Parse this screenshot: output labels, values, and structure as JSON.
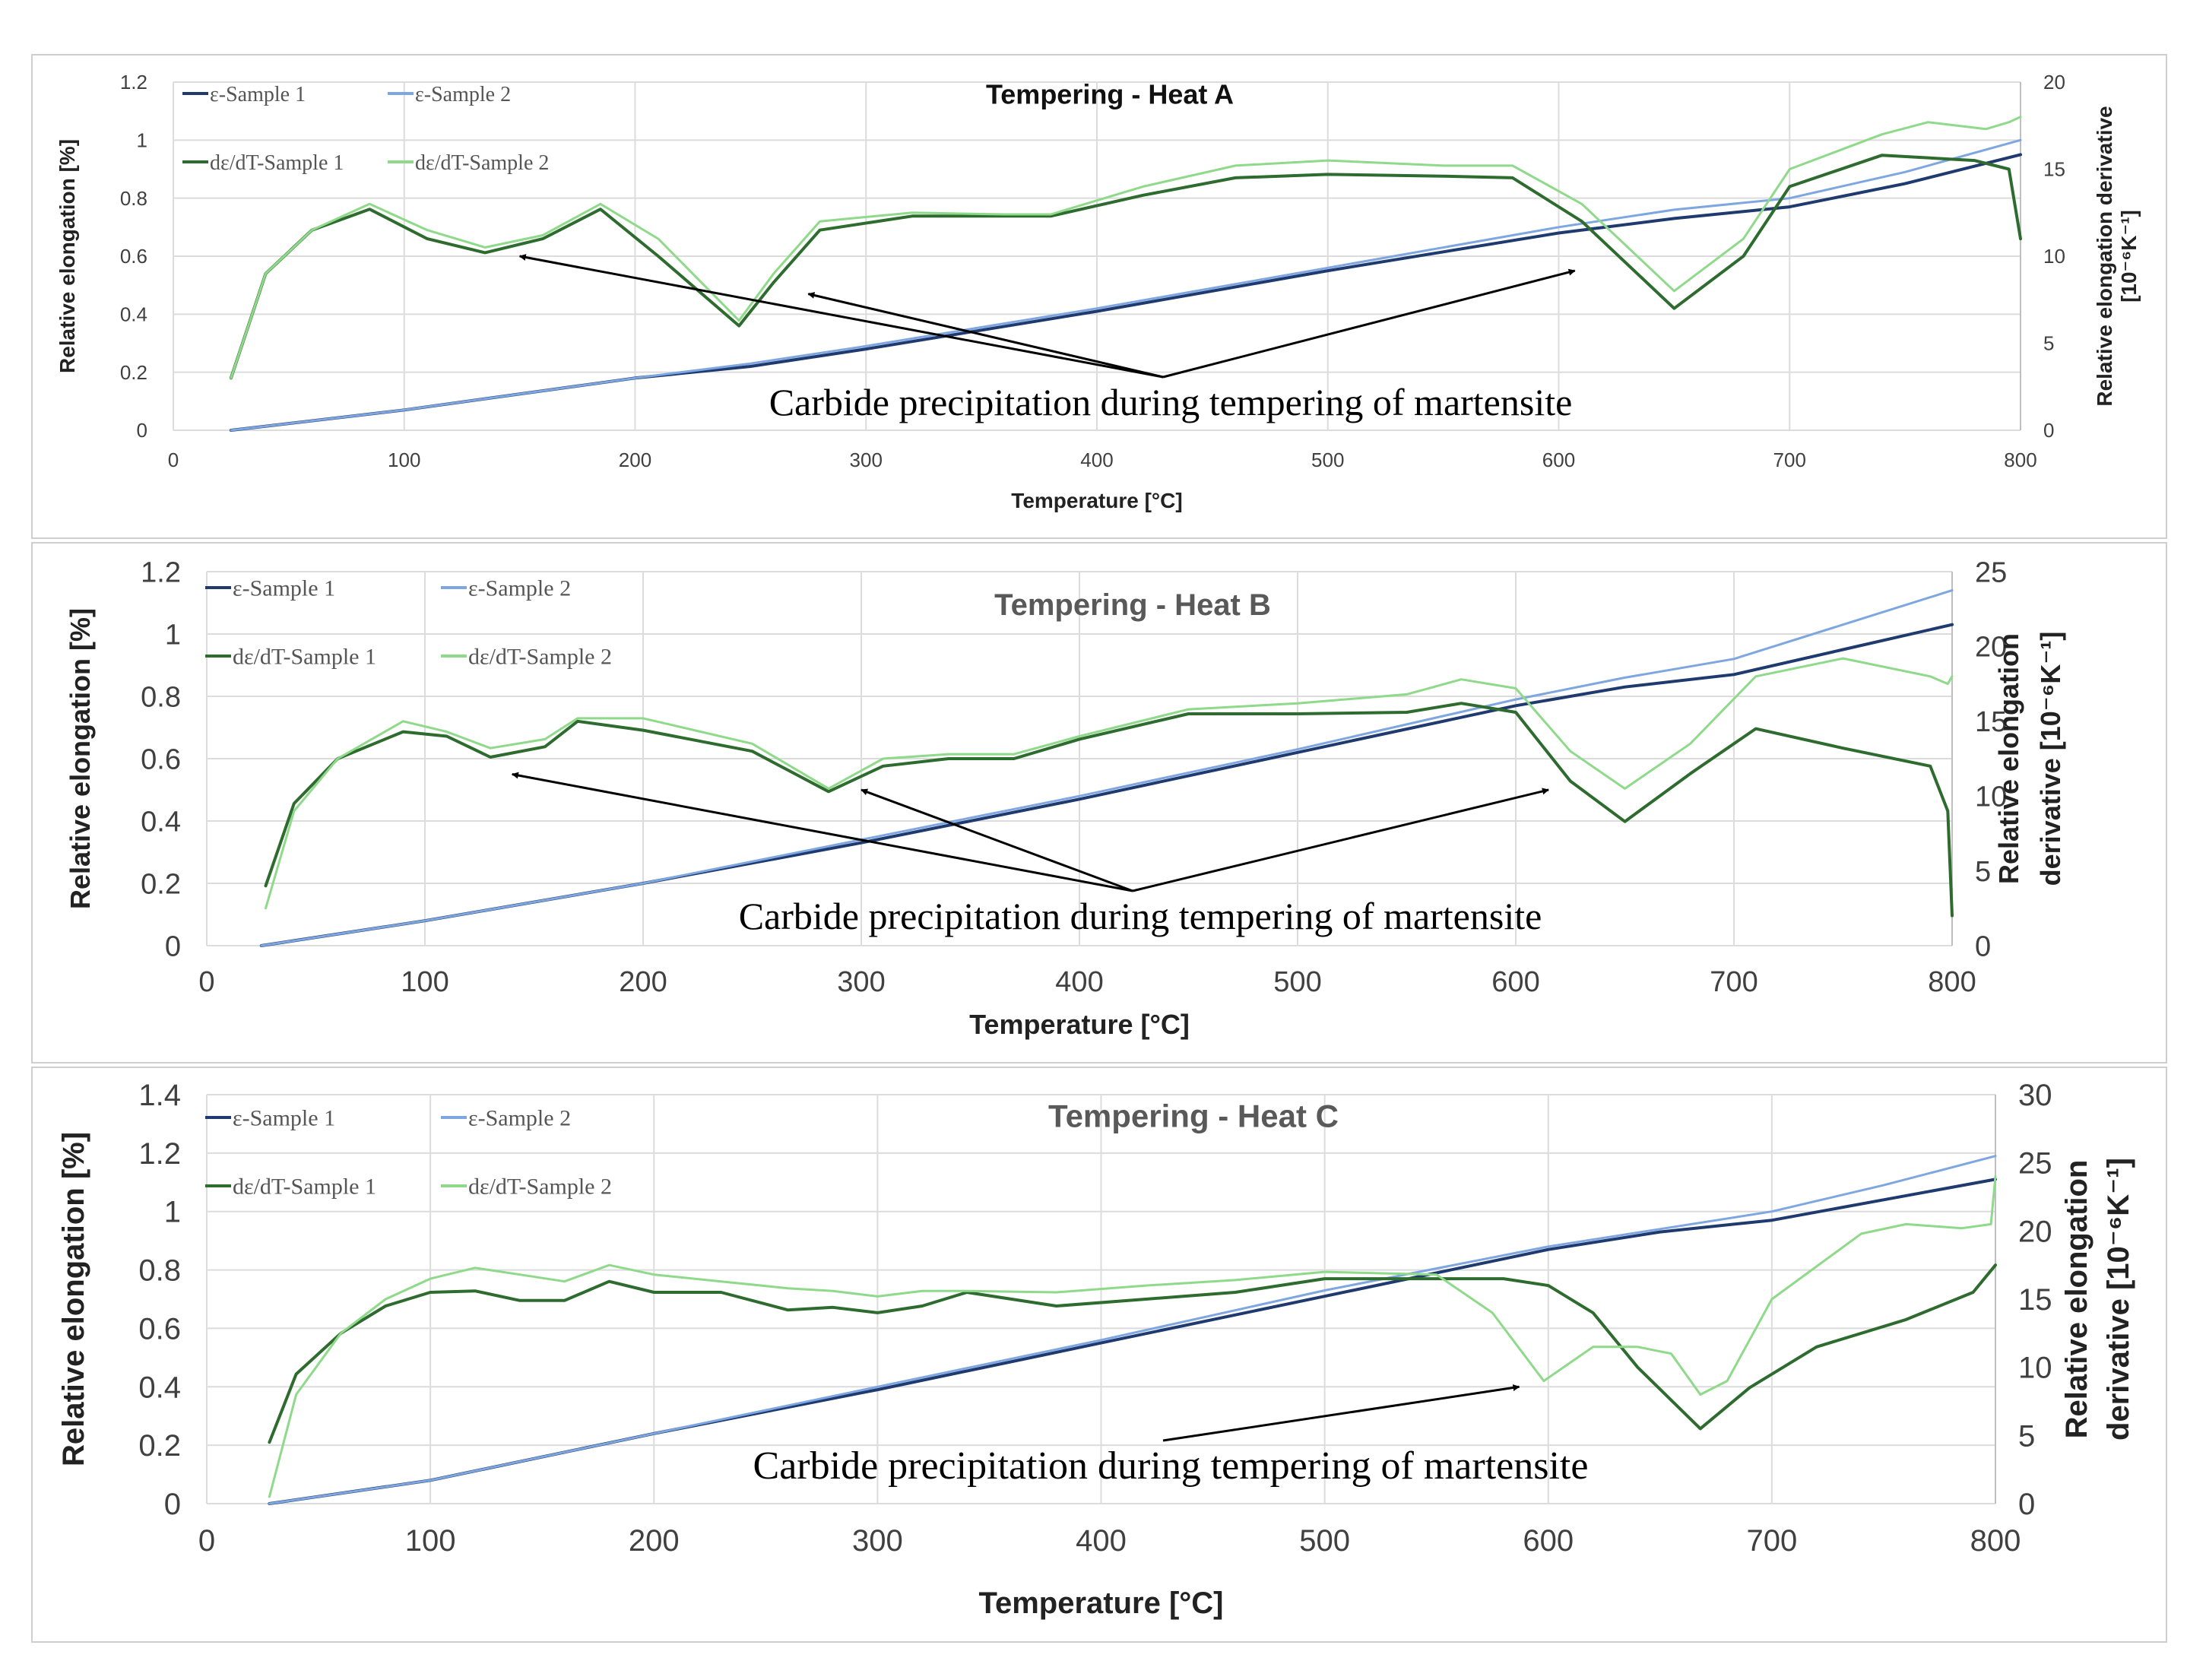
{
  "colors": {
    "eps1": "#1f3a6e",
    "eps2": "#7ea6e0",
    "der1": "#2e6b2e",
    "der2": "#8fd98a",
    "grid": "#dcdcdc",
    "frame": "#cfcfcf",
    "text": "#404040"
  },
  "chart_data": [
    {
      "type": "line",
      "title": "Tempering - Heat A",
      "xlabel": "Temperature [°C]",
      "ylabel": "Relative elongation [%]",
      "y2label_lines": [
        "Relative elongation derivative",
        "[10⁻⁶K⁻¹]"
      ],
      "xlim": [
        0,
        800
      ],
      "ylim": [
        0,
        1.2
      ],
      "y2lim": [
        0,
        20
      ],
      "xticks": [
        "0",
        "100",
        "200",
        "300",
        "400",
        "500",
        "600",
        "700",
        "800"
      ],
      "yticks": [
        "0",
        "0.2",
        "0.4",
        "0.6",
        "0.8",
        "1",
        "1.2"
      ],
      "y2ticks": [
        "0",
        "5",
        "10",
        "15",
        "20"
      ],
      "legend": [
        "ε-Sample 1",
        "ε-Sample 2",
        "dε/dT-Sample 1",
        "dε/dT-Sample 2"
      ],
      "legend_position": "top-left",
      "grid": true,
      "annotation": "Carbide precipitation during tempering of martensite",
      "arrow_targets": [
        [
          150,
          0.6
        ],
        [
          275,
          0.47
        ],
        [
          607,
          0.55
        ]
      ],
      "series": [
        {
          "name": "ε-Sample 1",
          "axis": "left",
          "x": [
            25,
            100,
            200,
            250,
            300,
            400,
            500,
            600,
            650,
            700,
            750,
            800
          ],
          "y": [
            0,
            0.07,
            0.18,
            0.22,
            0.28,
            0.41,
            0.55,
            0.68,
            0.73,
            0.77,
            0.85,
            0.95
          ]
        },
        {
          "name": "ε-Sample 2",
          "axis": "left",
          "x": [
            25,
            100,
            200,
            250,
            300,
            400,
            500,
            600,
            650,
            700,
            750,
            800
          ],
          "y": [
            0,
            0.07,
            0.18,
            0.23,
            0.29,
            0.42,
            0.56,
            0.7,
            0.76,
            0.8,
            0.89,
            1.0
          ]
        },
        {
          "name": "dε/dT-Sample 1",
          "axis": "right",
          "x": [
            25,
            40,
            60,
            85,
            110,
            135,
            160,
            185,
            210,
            245,
            260,
            280,
            320,
            360,
            380,
            420,
            460,
            500,
            550,
            580,
            610,
            650,
            680,
            700,
            740,
            780,
            795,
            800
          ],
          "y": [
            3,
            9,
            11.5,
            12.7,
            11,
            10.2,
            11,
            12.7,
            10,
            6,
            8.5,
            11.5,
            12.3,
            12.3,
            12.3,
            13.5,
            14.5,
            14.7,
            14.6,
            14.5,
            12,
            7,
            10,
            14,
            15.8,
            15.5,
            15,
            11
          ]
        },
        {
          "name": "dε/dT-Sample 2",
          "axis": "right",
          "x": [
            25,
            40,
            60,
            85,
            110,
            135,
            160,
            185,
            210,
            245,
            260,
            280,
            320,
            360,
            380,
            420,
            460,
            500,
            550,
            580,
            610,
            650,
            680,
            700,
            740,
            760,
            785,
            795,
            800
          ],
          "y": [
            3,
            9,
            11.5,
            13,
            11.5,
            10.5,
            11.2,
            13,
            11,
            6.3,
            9,
            12,
            12.5,
            12.4,
            12.4,
            14,
            15.2,
            15.5,
            15.2,
            15.2,
            13,
            8,
            11,
            15,
            17,
            17.7,
            17.3,
            17.7,
            18
          ]
        }
      ]
    },
    {
      "type": "line",
      "title": "Tempering - Heat B",
      "xlabel": "Temperature [°C]",
      "ylabel": "Relative elongation [%]",
      "y2label_lines": [
        "Relative elongation",
        "derivative [10⁻⁶K⁻¹]"
      ],
      "xlim": [
        0,
        800
      ],
      "ylim": [
        0,
        1.2
      ],
      "y2lim": [
        0,
        25
      ],
      "xticks": [
        "0",
        "100",
        "200",
        "300",
        "400",
        "500",
        "600",
        "700",
        "800"
      ],
      "yticks": [
        "0",
        "0.2",
        "0.4",
        "0.6",
        "0.8",
        "1",
        "1.2"
      ],
      "y2ticks": [
        "0",
        "5",
        "10",
        "15",
        "20",
        "25"
      ],
      "legend": [
        "ε-Sample 1",
        "ε-Sample 2",
        "dε/dT-Sample 1",
        "dε/dT-Sample 2"
      ],
      "legend_position": "top-left",
      "grid": true,
      "annotation": "Carbide precipitation during tempering of martensite",
      "arrow_targets": [
        [
          140,
          0.55
        ],
        [
          300,
          0.5
        ],
        [
          615,
          0.5
        ]
      ],
      "series": [
        {
          "name": "ε-Sample 1",
          "axis": "left",
          "x": [
            25,
            100,
            200,
            300,
            400,
            500,
            600,
            650,
            700,
            750,
            800
          ],
          "y": [
            0,
            0.08,
            0.2,
            0.33,
            0.47,
            0.62,
            0.77,
            0.83,
            0.87,
            0.95,
            1.03
          ]
        },
        {
          "name": "ε-Sample 2",
          "axis": "left",
          "x": [
            25,
            100,
            200,
            300,
            400,
            500,
            600,
            650,
            700,
            750,
            800
          ],
          "y": [
            0,
            0.08,
            0.2,
            0.34,
            0.48,
            0.63,
            0.79,
            0.86,
            0.92,
            1.03,
            1.14
          ]
        },
        {
          "name": "dε/dT-Sample 1",
          "axis": "right",
          "x": [
            27,
            40,
            60,
            90,
            110,
            130,
            155,
            170,
            200,
            250,
            285,
            310,
            340,
            370,
            400,
            450,
            500,
            550,
            575,
            600,
            625,
            650,
            680,
            710,
            750,
            790,
            798,
            800
          ],
          "y": [
            4,
            9.5,
            12.5,
            14.3,
            14,
            12.6,
            13.3,
            15,
            14.4,
            13,
            10.3,
            12,
            12.5,
            12.5,
            13.8,
            15.5,
            15.5,
            15.6,
            16.2,
            15.6,
            11,
            8.3,
            11.5,
            14.5,
            13.2,
            12,
            9,
            2
          ]
        },
        {
          "name": "dε/dT-Sample 2",
          "axis": "right",
          "x": [
            27,
            40,
            60,
            90,
            110,
            130,
            155,
            170,
            200,
            250,
            285,
            310,
            340,
            370,
            400,
            450,
            500,
            550,
            575,
            600,
            625,
            650,
            680,
            710,
            750,
            790,
            798,
            800
          ],
          "y": [
            2.5,
            9,
            12.5,
            15,
            14.3,
            13.2,
            13.8,
            15.2,
            15.2,
            13.5,
            10.5,
            12.5,
            12.8,
            12.8,
            14,
            15.8,
            16.2,
            16.8,
            17.8,
            17.2,
            13,
            10.5,
            13.5,
            18,
            19.2,
            18,
            17.5,
            18
          ]
        }
      ]
    },
    {
      "type": "line",
      "title": "Tempering - Heat C",
      "xlabel": "Temperature [°C]",
      "ylabel": "Relative elongation [%]",
      "y2label_lines": [
        "Relative elongation",
        "derivative [10⁻⁶K⁻¹]"
      ],
      "xlim": [
        0,
        800
      ],
      "ylim": [
        0,
        1.4
      ],
      "y2lim": [
        0,
        30
      ],
      "xticks": [
        "0",
        "100",
        "200",
        "300",
        "400",
        "500",
        "600",
        "700",
        "800"
      ],
      "yticks": [
        "0",
        "0.2",
        "0.4",
        "0.6",
        "0.8",
        "1",
        "1.2",
        "1.4"
      ],
      "y2ticks": [
        "0",
        "5",
        "10",
        "15",
        "20",
        "25",
        "30"
      ],
      "legend": [
        "ε-Sample 1",
        "ε-Sample 2",
        "dε/dT-Sample 1",
        "dε/dT-Sample 2"
      ],
      "legend_position": "top-left",
      "grid": true,
      "annotation": "Carbide precipitation during tempering of martensite",
      "arrow_targets": [
        [
          587,
          0.4
        ]
      ],
      "series": [
        {
          "name": "ε-Sample 1",
          "axis": "left",
          "x": [
            28,
            100,
            200,
            300,
            400,
            500,
            600,
            650,
            700,
            750,
            800
          ],
          "y": [
            0,
            0.08,
            0.24,
            0.39,
            0.55,
            0.71,
            0.87,
            0.93,
            0.97,
            1.04,
            1.11
          ]
        },
        {
          "name": "ε-Sample 2",
          "axis": "left",
          "x": [
            28,
            100,
            200,
            300,
            400,
            500,
            600,
            650,
            700,
            750,
            800
          ],
          "y": [
            0,
            0.08,
            0.24,
            0.4,
            0.56,
            0.73,
            0.88,
            0.94,
            1.0,
            1.09,
            1.19
          ]
        },
        {
          "name": "dε/dT-Sample 1",
          "axis": "right",
          "x": [
            28,
            40,
            60,
            80,
            100,
            120,
            140,
            160,
            180,
            200,
            230,
            260,
            280,
            300,
            320,
            340,
            380,
            420,
            460,
            500,
            550,
            580,
            600,
            620,
            640,
            668,
            690,
            720,
            760,
            790,
            800
          ],
          "y": [
            4.5,
            9.5,
            12.5,
            14.5,
            15.5,
            15.6,
            14.9,
            14.9,
            16.3,
            15.5,
            15.5,
            14.2,
            14.4,
            14,
            14.5,
            15.5,
            14.5,
            15,
            15.5,
            16.5,
            16.5,
            16.5,
            16,
            14,
            10,
            5.5,
            8.5,
            11.5,
            13.5,
            15.5,
            17.5
          ]
        },
        {
          "name": "dε/dT-Sample 2",
          "axis": "right",
          "x": [
            28,
            40,
            60,
            80,
            100,
            120,
            140,
            160,
            180,
            200,
            230,
            260,
            280,
            300,
            320,
            340,
            380,
            420,
            460,
            500,
            550,
            575,
            598,
            620,
            640,
            655,
            668,
            680,
            700,
            740,
            760,
            785,
            798,
            800
          ],
          "y": [
            0.5,
            8,
            12.5,
            15,
            16.5,
            17.3,
            16.8,
            16.3,
            17.5,
            16.8,
            16.3,
            15.8,
            15.6,
            15.2,
            15.6,
            15.6,
            15.5,
            16,
            16.4,
            17,
            16.8,
            14,
            9,
            11.5,
            11.5,
            11,
            8,
            9,
            15,
            19.8,
            20.5,
            20.2,
            20.5,
            24
          ]
        }
      ]
    }
  ]
}
